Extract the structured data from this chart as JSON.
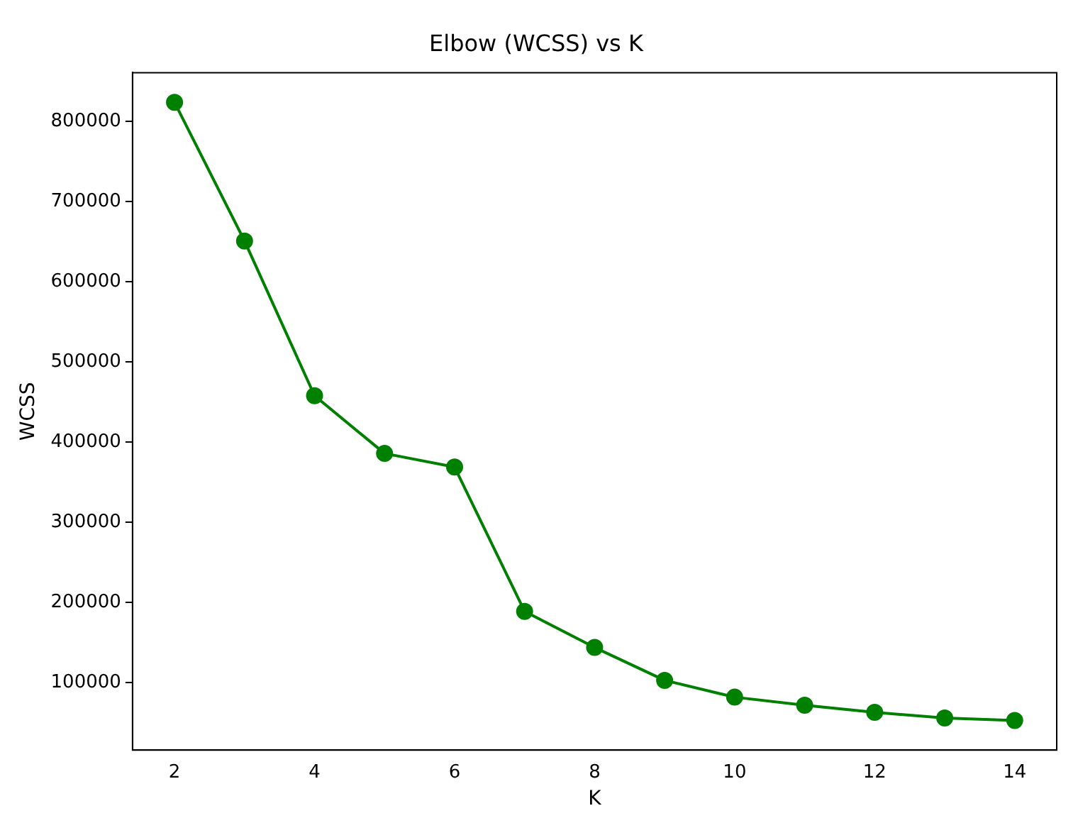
{
  "chart_data": {
    "type": "line",
    "title": "Elbow (WCSS) vs K",
    "xlabel": "K",
    "ylabel": "WCSS",
    "x": [
      2,
      3,
      4,
      5,
      6,
      7,
      8,
      9,
      10,
      11,
      12,
      13,
      14
    ],
    "series": [
      {
        "color": "#008000",
        "values": [
          824000,
          651000,
          458000,
          386000,
          369000,
          189000,
          144000,
          103000,
          82000,
          72000,
          63000,
          56000,
          53000
        ]
      }
    ],
    "xlim": [
      1.4,
      14.6
    ],
    "xticks": [
      2,
      4,
      6,
      8,
      10,
      12,
      14
    ],
    "ylim": [
      16000,
      861000
    ],
    "yticks": [
      100000,
      200000,
      300000,
      400000,
      500000,
      600000,
      700000,
      800000
    ],
    "grid": false,
    "legend": false,
    "marker": "circle",
    "line_style": "solid"
  }
}
